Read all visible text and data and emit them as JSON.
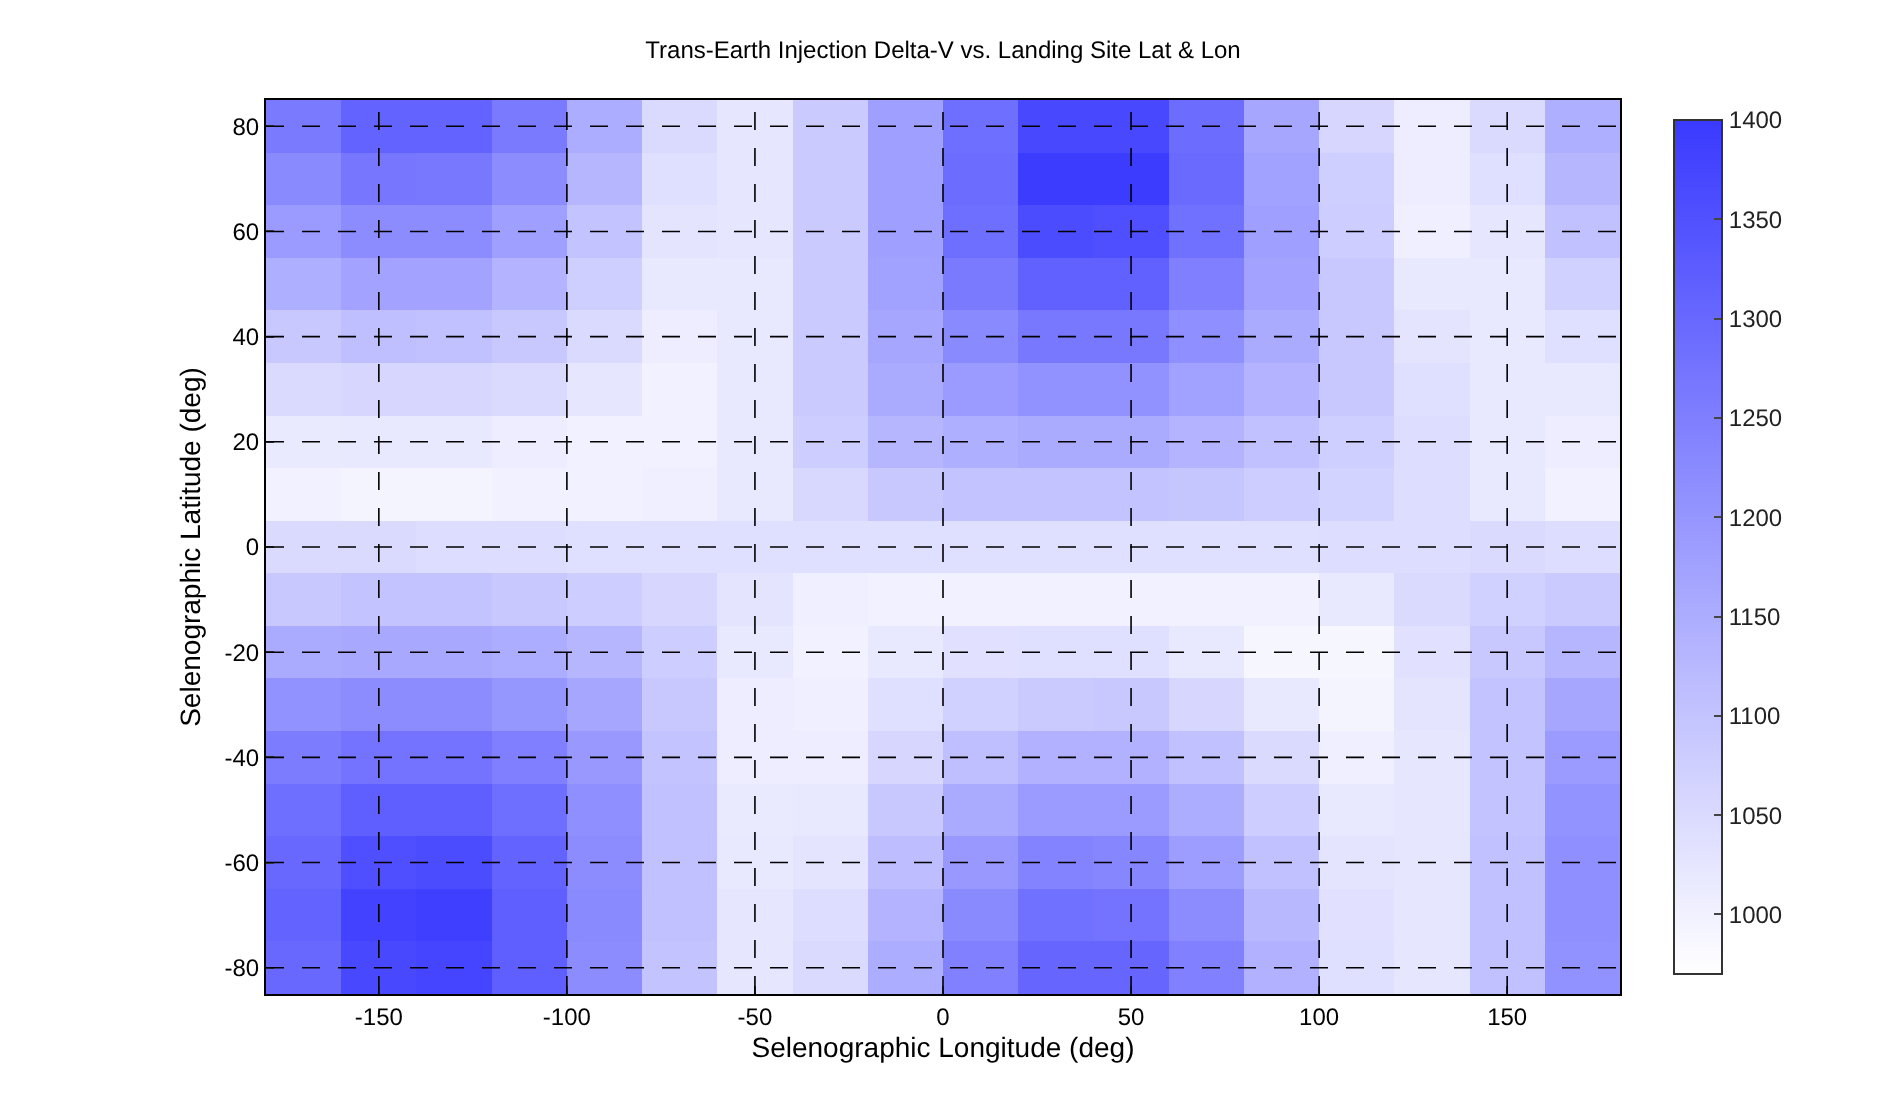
{
  "chart_data": {
    "type": "heatmap",
    "title": "Trans-Earth Injection Delta-V vs. Landing Site Lat & Lon",
    "xlabel": "Selenographic Longitude (deg)",
    "ylabel": "Selenographic Latitude (deg)",
    "x": [
      -170,
      -150,
      -130,
      -110,
      -90,
      -70,
      -50,
      -30,
      -10,
      10,
      30,
      50,
      70,
      90,
      110,
      130,
      150,
      170
    ],
    "y_categories": [
      "80",
      null,
      "60",
      null,
      "40",
      null,
      "20",
      null,
      "0",
      null,
      "-20",
      null,
      "-40",
      null,
      "-60",
      null,
      "-80"
    ],
    "cells": [
      [
        1260,
        1310,
        1310,
        1260,
        1150,
        1050,
        1025,
        1085,
        1180,
        1285,
        1370,
        1370,
        1290,
        1165,
        1060,
        1010,
        1050,
        1145
      ],
      [
        1225,
        1270,
        1265,
        1220,
        1130,
        1040,
        1025,
        1085,
        1180,
        1290,
        1395,
        1395,
        1295,
        1175,
        1075,
        1010,
        1040,
        1130
      ],
      [
        1190,
        1220,
        1220,
        1180,
        1100,
        1030,
        1025,
        1085,
        1180,
        1285,
        1360,
        1355,
        1280,
        1180,
        1080,
        1005,
        1025,
        1105
      ],
      [
        1145,
        1170,
        1170,
        1135,
        1075,
        1020,
        1020,
        1085,
        1175,
        1260,
        1315,
        1315,
        1250,
        1170,
        1090,
        1020,
        1020,
        1070
      ],
      [
        1090,
        1110,
        1105,
        1090,
        1050,
        1010,
        1020,
        1085,
        1165,
        1225,
        1265,
        1265,
        1215,
        1155,
        1090,
        1030,
        1020,
        1040
      ],
      [
        1050,
        1060,
        1060,
        1050,
        1025,
        1000,
        1020,
        1085,
        1155,
        1190,
        1210,
        1210,
        1175,
        1135,
        1090,
        1040,
        1020,
        1020
      ],
      [
        1015,
        1020,
        1020,
        1010,
        1000,
        1000,
        1020,
        1080,
        1130,
        1145,
        1155,
        1155,
        1135,
        1105,
        1075,
        1045,
        1020,
        1010
      ],
      [
        1000,
        995,
        995,
        1000,
        1000,
        1005,
        1020,
        1055,
        1090,
        1100,
        1100,
        1100,
        1095,
        1080,
        1065,
        1045,
        1020,
        1000
      ],
      [
        1050,
        1050,
        1045,
        1045,
        1040,
        1040,
        1040,
        1040,
        1040,
        1040,
        1040,
        1040,
        1040,
        1040,
        1045,
        1045,
        1050,
        1045
      ],
      [
        1090,
        1100,
        1100,
        1090,
        1080,
        1060,
        1030,
        1005,
        1000,
        1000,
        1000,
        1000,
        1000,
        1000,
        1020,
        1050,
        1070,
        1085
      ],
      [
        1155,
        1160,
        1160,
        1150,
        1130,
        1080,
        1020,
        1000,
        1020,
        1035,
        1040,
        1040,
        1020,
        990,
        990,
        1035,
        1090,
        1130
      ],
      [
        1210,
        1220,
        1220,
        1200,
        1165,
        1090,
        1010,
        1005,
        1040,
        1070,
        1085,
        1090,
        1060,
        1020,
        995,
        1030,
        1100,
        1165
      ],
      [
        1255,
        1275,
        1275,
        1250,
        1195,
        1100,
        1010,
        1010,
        1060,
        1110,
        1140,
        1140,
        1105,
        1050,
        1005,
        1025,
        1100,
        1190
      ],
      [
        1285,
        1320,
        1320,
        1285,
        1215,
        1105,
        1015,
        1020,
        1090,
        1155,
        1190,
        1190,
        1150,
        1080,
        1020,
        1025,
        1100,
        1205
      ],
      [
        1300,
        1355,
        1360,
        1310,
        1220,
        1105,
        1020,
        1030,
        1115,
        1195,
        1240,
        1235,
        1185,
        1105,
        1030,
        1025,
        1105,
        1215
      ],
      [
        1310,
        1380,
        1390,
        1320,
        1225,
        1105,
        1025,
        1045,
        1135,
        1225,
        1280,
        1275,
        1220,
        1125,
        1035,
        1025,
        1105,
        1215
      ],
      [
        1300,
        1370,
        1375,
        1320,
        1220,
        1100,
        1025,
        1050,
        1150,
        1245,
        1305,
        1305,
        1245,
        1140,
        1040,
        1025,
        1105,
        1210
      ]
    ],
    "xlim": [
      -180,
      180
    ],
    "xticks": [
      -150,
      -100,
      -50,
      0,
      50,
      100,
      150
    ],
    "clim": [
      970,
      1400
    ],
    "cticks": [
      1000,
      1050,
      1100,
      1150,
      1200,
      1250,
      1300,
      1350,
      1400
    ],
    "grid": true
  }
}
